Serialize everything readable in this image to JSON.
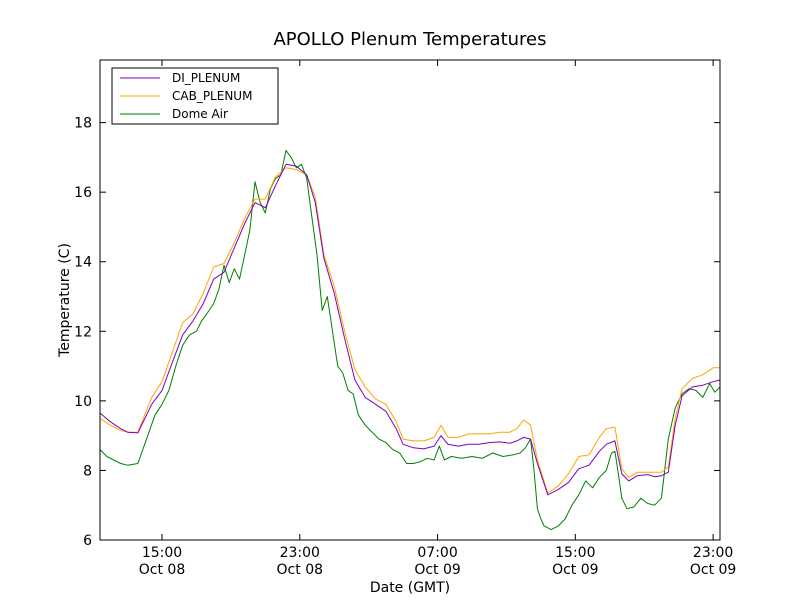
{
  "chart_data": {
    "type": "line",
    "title": "APOLLO Plenum Temperatures",
    "xlabel": "Date (GMT)",
    "ylabel": "Temperature (C)",
    "ylim": [
      6,
      19.8
    ],
    "xlim": [
      11.4,
      47.4
    ],
    "x_unit": "hours since Oct 08 00:00 GMT",
    "yticks": [
      6,
      8,
      10,
      12,
      14,
      16,
      18
    ],
    "xticks": [
      {
        "x": 15,
        "time": "15:00",
        "date": "Oct 08"
      },
      {
        "x": 23,
        "time": "23:00",
        "date": "Oct 08"
      },
      {
        "x": 31,
        "time": "07:00",
        "date": "Oct 09"
      },
      {
        "x": 39,
        "time": "15:00",
        "date": "Oct 09"
      },
      {
        "x": 47,
        "time": "23:00",
        "date": "Oct 09"
      }
    ],
    "legend_position": "top-left",
    "series": [
      {
        "name": "DI_PLENUM",
        "color": "#7f00bf",
        "x": [
          11.4,
          12.0,
          12.6,
          13.0,
          13.6,
          14.4,
          15.0,
          15.6,
          16.2,
          16.8,
          17.4,
          18.0,
          18.6,
          19.2,
          19.8,
          20.4,
          21.0,
          21.6,
          22.2,
          22.8,
          23.4,
          23.9,
          24.4,
          25.0,
          25.6,
          26.2,
          26.8,
          27.4,
          28.0,
          28.6,
          29.0,
          29.6,
          30.2,
          30.8,
          31.2,
          31.6,
          32.2,
          32.8,
          33.4,
          34.0,
          34.6,
          35.2,
          35.6,
          36.0,
          36.4,
          36.8,
          37.4,
          38.0,
          38.6,
          39.2,
          39.8,
          40.4,
          40.8,
          41.3,
          41.7,
          42.1,
          42.6,
          43.2,
          43.6,
          44.0,
          44.4,
          44.8,
          45.2,
          45.8,
          46.4,
          47.0,
          47.4
        ],
        "y": [
          9.65,
          9.4,
          9.2,
          9.1,
          9.08,
          9.9,
          10.3,
          11.1,
          11.9,
          12.3,
          12.8,
          13.5,
          13.7,
          14.4,
          15.1,
          15.7,
          15.55,
          16.2,
          16.8,
          16.75,
          16.5,
          15.7,
          14.1,
          13.1,
          11.8,
          10.6,
          10.1,
          9.9,
          9.7,
          9.2,
          8.75,
          8.65,
          8.62,
          8.7,
          9.0,
          8.75,
          8.7,
          8.75,
          8.75,
          8.8,
          8.82,
          8.78,
          8.85,
          8.95,
          8.9,
          8.2,
          7.3,
          7.45,
          7.65,
          8.05,
          8.15,
          8.55,
          8.75,
          8.85,
          7.9,
          7.7,
          7.85,
          7.88,
          7.82,
          7.85,
          7.95,
          9.3,
          10.15,
          10.4,
          10.45,
          10.55,
          10.6
        ]
      },
      {
        "name": "CAB_PLENUM",
        "color": "#ffa500",
        "x": [
          11.4,
          12.0,
          12.6,
          13.0,
          13.6,
          14.4,
          15.0,
          15.6,
          16.2,
          16.8,
          17.4,
          18.0,
          18.6,
          19.2,
          19.8,
          20.4,
          21.0,
          21.6,
          22.2,
          22.8,
          23.4,
          23.9,
          24.4,
          25.0,
          25.6,
          26.2,
          26.8,
          27.4,
          28.0,
          28.6,
          29.0,
          29.6,
          30.2,
          30.8,
          31.2,
          31.6,
          32.2,
          32.8,
          33.4,
          34.0,
          34.6,
          35.2,
          35.6,
          36.0,
          36.4,
          36.8,
          37.4,
          38.0,
          38.6,
          39.2,
          39.8,
          40.4,
          40.8,
          41.3,
          41.7,
          42.1,
          42.6,
          43.2,
          43.6,
          44.0,
          44.4,
          44.8,
          45.2,
          45.8,
          46.4,
          47.0,
          47.4
        ],
        "y": [
          9.5,
          9.3,
          9.15,
          9.1,
          9.1,
          10.1,
          10.55,
          11.4,
          12.25,
          12.5,
          13.1,
          13.85,
          13.95,
          14.55,
          15.25,
          15.8,
          15.8,
          16.45,
          16.7,
          16.65,
          16.5,
          15.85,
          14.2,
          13.3,
          12.0,
          10.9,
          10.4,
          10.05,
          9.9,
          9.4,
          8.9,
          8.85,
          8.85,
          8.95,
          9.3,
          8.95,
          8.95,
          9.05,
          9.05,
          9.05,
          9.1,
          9.1,
          9.2,
          9.45,
          9.3,
          8.3,
          7.35,
          7.55,
          7.9,
          8.4,
          8.45,
          8.95,
          9.2,
          9.25,
          8.05,
          7.8,
          7.95,
          7.95,
          7.95,
          7.95,
          8.1,
          9.5,
          10.35,
          10.65,
          10.75,
          10.95,
          10.95
        ]
      },
      {
        "name": "Dome Air",
        "color": "#007f00",
        "x": [
          11.4,
          11.8,
          12.2,
          12.6,
          13.0,
          13.6,
          14.1,
          14.6,
          15.0,
          15.4,
          15.8,
          16.2,
          16.6,
          17.0,
          17.3,
          17.6,
          18.0,
          18.3,
          18.6,
          18.9,
          19.2,
          19.5,
          19.8,
          20.1,
          20.4,
          20.7,
          21.0,
          21.3,
          21.6,
          21.9,
          22.2,
          22.5,
          22.8,
          23.1,
          23.4,
          23.7,
          24.0,
          24.3,
          24.6,
          24.9,
          25.2,
          25.5,
          25.8,
          26.1,
          26.4,
          26.8,
          27.2,
          27.6,
          28.0,
          28.4,
          28.8,
          29.2,
          29.6,
          30.0,
          30.4,
          30.8,
          31.1,
          31.4,
          31.8,
          32.4,
          33.0,
          33.6,
          34.2,
          34.8,
          35.4,
          35.8,
          36.1,
          36.4,
          36.6,
          36.8,
          37.0,
          37.2,
          37.6,
          38.0,
          38.4,
          38.8,
          39.2,
          39.6,
          40.0,
          40.4,
          40.8,
          41.1,
          41.3,
          41.5,
          41.7,
          42.0,
          42.4,
          42.8,
          43.2,
          43.6,
          44.0,
          44.4,
          44.8,
          45.2,
          45.6,
          46.0,
          46.4,
          46.8,
          47.1,
          47.4
        ],
        "y": [
          8.6,
          8.4,
          8.3,
          8.2,
          8.15,
          8.2,
          8.9,
          9.6,
          9.9,
          10.3,
          11.0,
          11.6,
          11.9,
          12.0,
          12.3,
          12.5,
          12.8,
          13.2,
          13.9,
          13.4,
          13.8,
          13.5,
          14.2,
          14.9,
          16.3,
          15.7,
          15.4,
          16.1,
          16.4,
          16.5,
          17.2,
          17.0,
          16.7,
          16.8,
          16.4,
          15.3,
          14.2,
          12.6,
          13.0,
          12.0,
          11.0,
          10.8,
          10.3,
          10.2,
          9.6,
          9.3,
          9.1,
          8.9,
          8.8,
          8.6,
          8.5,
          8.2,
          8.2,
          8.25,
          8.35,
          8.3,
          8.7,
          8.3,
          8.4,
          8.35,
          8.4,
          8.35,
          8.5,
          8.4,
          8.45,
          8.5,
          8.65,
          8.9,
          8.0,
          6.9,
          6.6,
          6.4,
          6.3,
          6.4,
          6.6,
          7.0,
          7.3,
          7.7,
          7.5,
          7.8,
          8.0,
          8.5,
          8.55,
          7.9,
          7.2,
          6.9,
          6.95,
          7.2,
          7.05,
          7.0,
          7.2,
          8.9,
          9.8,
          10.2,
          10.35,
          10.3,
          10.1,
          10.5,
          10.25,
          10.4
        ]
      }
    ]
  }
}
